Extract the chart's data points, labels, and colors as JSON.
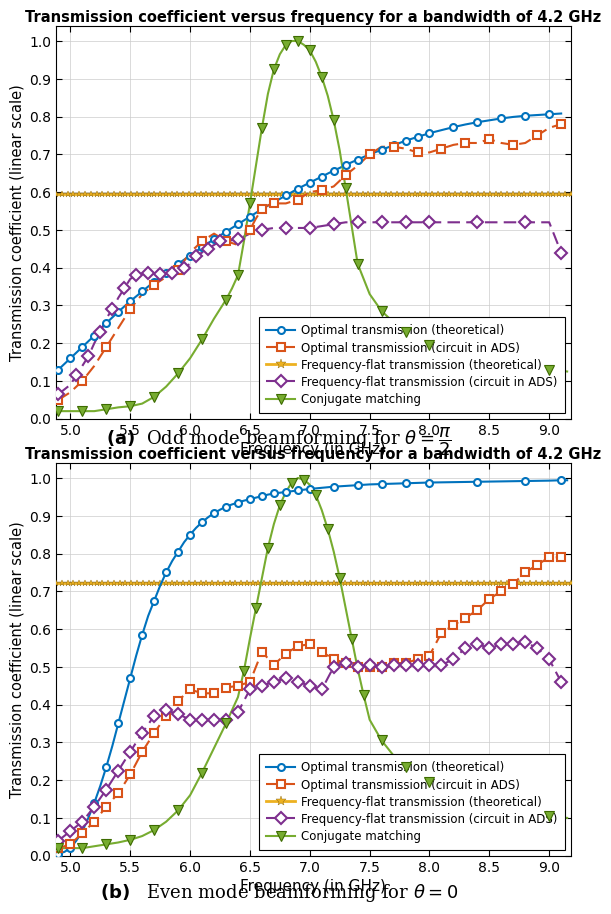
{
  "title": "Transmission coefficient versus frequency for a bandwidth of 4.2 GHz",
  "xlabel": "Frequency (in GHz)",
  "ylabel": "Transmission coefficient (linear scale)",
  "xticks": [
    5.0,
    5.5,
    6.0,
    6.5,
    7.0,
    7.5,
    8.0,
    8.5,
    9.0
  ],
  "yticks": [
    0.0,
    0.1,
    0.2,
    0.3,
    0.4,
    0.5,
    0.6,
    0.7,
    0.8,
    0.9,
    1.0
  ],
  "xlim": [
    4.88,
    9.18
  ],
  "ylim": [
    0.0,
    1.04
  ],
  "colors": {
    "blue": "#0072BD",
    "orange": "#D95319",
    "yellow": "#EDB120",
    "purple": "#7E2F8E",
    "green": "#77AC30"
  },
  "legend_labels": [
    "Optimal transmission (theoretical)",
    "Optimal transmission (circuit in ADS)",
    "Frequency-flat transmission (theoretical)",
    "Frequency-flat transmission (circuit in ADS)",
    "Conjugate matching"
  ],
  "caption_a": "(\\mathbf{a})\\;\\text{Odd mode beamforming for }\\theta = \\dfrac{\\pi}{2}",
  "caption_b": "(\\mathbf{b})\\;\\text{Even mode beamforming for }\\theta = 0",
  "a_blue_x": [
    4.9,
    4.95,
    5.0,
    5.05,
    5.1,
    5.15,
    5.2,
    5.25,
    5.3,
    5.35,
    5.4,
    5.45,
    5.5,
    5.55,
    5.6,
    5.65,
    5.7,
    5.75,
    5.8,
    5.85,
    5.9,
    5.95,
    6.0,
    6.05,
    6.1,
    6.15,
    6.2,
    6.25,
    6.3,
    6.35,
    6.4,
    6.45,
    6.5,
    6.55,
    6.6,
    6.65,
    6.7,
    6.75,
    6.8,
    6.85,
    6.9,
    6.95,
    7.0,
    7.05,
    7.1,
    7.15,
    7.2,
    7.25,
    7.3,
    7.35,
    7.4,
    7.45,
    7.5,
    7.55,
    7.6,
    7.65,
    7.7,
    7.75,
    7.8,
    7.85,
    7.9,
    7.95,
    8.0,
    8.1,
    8.2,
    8.3,
    8.4,
    8.5,
    8.6,
    8.7,
    8.8,
    8.9,
    9.0,
    9.1
  ],
  "a_blue_y": [
    0.13,
    0.145,
    0.16,
    0.175,
    0.19,
    0.205,
    0.22,
    0.237,
    0.253,
    0.268,
    0.283,
    0.297,
    0.311,
    0.324,
    0.337,
    0.35,
    0.363,
    0.375,
    0.387,
    0.399,
    0.41,
    0.421,
    0.432,
    0.443,
    0.454,
    0.465,
    0.475,
    0.485,
    0.495,
    0.505,
    0.515,
    0.525,
    0.535,
    0.545,
    0.555,
    0.564,
    0.573,
    0.582,
    0.591,
    0.6,
    0.609,
    0.617,
    0.625,
    0.633,
    0.641,
    0.649,
    0.657,
    0.664,
    0.672,
    0.679,
    0.686,
    0.693,
    0.7,
    0.706,
    0.712,
    0.718,
    0.724,
    0.73,
    0.736,
    0.741,
    0.746,
    0.751,
    0.756,
    0.764,
    0.772,
    0.779,
    0.785,
    0.79,
    0.795,
    0.799,
    0.802,
    0.804,
    0.806,
    0.808
  ],
  "a_orange_x": [
    4.9,
    5.0,
    5.1,
    5.2,
    5.3,
    5.4,
    5.5,
    5.6,
    5.7,
    5.8,
    5.9,
    6.0,
    6.1,
    6.2,
    6.3,
    6.4,
    6.5,
    6.55,
    6.6,
    6.65,
    6.7,
    6.8,
    6.9,
    7.0,
    7.1,
    7.2,
    7.3,
    7.4,
    7.5,
    7.6,
    7.7,
    7.8,
    7.9,
    8.0,
    8.1,
    8.2,
    8.3,
    8.4,
    8.5,
    8.6,
    8.7,
    8.8,
    8.9,
    9.0,
    9.1
  ],
  "a_orange_y": [
    0.05,
    0.07,
    0.1,
    0.14,
    0.19,
    0.24,
    0.29,
    0.33,
    0.355,
    0.375,
    0.395,
    0.44,
    0.47,
    0.49,
    0.47,
    0.46,
    0.5,
    0.53,
    0.555,
    0.565,
    0.57,
    0.57,
    0.58,
    0.6,
    0.605,
    0.615,
    0.645,
    0.67,
    0.7,
    0.72,
    0.72,
    0.715,
    0.705,
    0.705,
    0.715,
    0.725,
    0.73,
    0.73,
    0.74,
    0.73,
    0.725,
    0.73,
    0.75,
    0.77,
    0.78
  ],
  "a_yellow_val": 0.595,
  "a_purple_x": [
    4.9,
    5.0,
    5.05,
    5.1,
    5.15,
    5.2,
    5.25,
    5.3,
    5.35,
    5.4,
    5.45,
    5.5,
    5.55,
    5.6,
    5.65,
    5.7,
    5.75,
    5.8,
    5.85,
    5.9,
    5.95,
    6.0,
    6.05,
    6.1,
    6.15,
    6.2,
    6.25,
    6.3,
    6.4,
    6.5,
    6.6,
    6.7,
    6.8,
    6.9,
    7.0,
    7.1,
    7.2,
    7.3,
    7.4,
    7.5,
    7.6,
    7.7,
    7.8,
    7.9,
    8.0,
    8.2,
    8.4,
    8.6,
    8.8,
    9.0,
    9.1
  ],
  "a_purple_y": [
    0.065,
    0.09,
    0.115,
    0.14,
    0.165,
    0.2,
    0.23,
    0.265,
    0.29,
    0.32,
    0.345,
    0.37,
    0.38,
    0.385,
    0.385,
    0.383,
    0.382,
    0.383,
    0.386,
    0.39,
    0.4,
    0.41,
    0.43,
    0.44,
    0.45,
    0.46,
    0.47,
    0.47,
    0.475,
    0.49,
    0.5,
    0.505,
    0.505,
    0.505,
    0.505,
    0.51,
    0.515,
    0.52,
    0.52,
    0.52,
    0.52,
    0.52,
    0.52,
    0.52,
    0.52,
    0.52,
    0.52,
    0.52,
    0.52,
    0.52,
    0.44
  ],
  "a_green_x": [
    4.9,
    5.0,
    5.1,
    5.2,
    5.3,
    5.4,
    5.5,
    5.6,
    5.7,
    5.8,
    5.9,
    6.0,
    6.1,
    6.2,
    6.3,
    6.35,
    6.4,
    6.45,
    6.5,
    6.55,
    6.6,
    6.65,
    6.7,
    6.75,
    6.8,
    6.85,
    6.9,
    6.95,
    7.0,
    7.05,
    7.1,
    7.15,
    7.2,
    7.25,
    7.3,
    7.35,
    7.4,
    7.5,
    7.6,
    7.7,
    7.8,
    7.9,
    8.0,
    8.5,
    9.0,
    9.15
  ],
  "a_green_y": [
    0.02,
    0.02,
    0.02,
    0.02,
    0.025,
    0.03,
    0.033,
    0.04,
    0.058,
    0.085,
    0.12,
    0.16,
    0.21,
    0.265,
    0.315,
    0.345,
    0.38,
    0.47,
    0.57,
    0.67,
    0.77,
    0.86,
    0.925,
    0.965,
    0.99,
    1.0,
    1.0,
    0.99,
    0.975,
    0.945,
    0.905,
    0.855,
    0.79,
    0.71,
    0.61,
    0.51,
    0.41,
    0.33,
    0.285,
    0.255,
    0.23,
    0.21,
    0.195,
    0.155,
    0.13,
    0.125
  ],
  "b_blue_x": [
    4.9,
    4.95,
    5.0,
    5.05,
    5.1,
    5.15,
    5.2,
    5.25,
    5.3,
    5.35,
    5.4,
    5.45,
    5.5,
    5.55,
    5.6,
    5.65,
    5.7,
    5.75,
    5.8,
    5.85,
    5.9,
    5.95,
    6.0,
    6.05,
    6.1,
    6.15,
    6.2,
    6.25,
    6.3,
    6.35,
    6.4,
    6.45,
    6.5,
    6.55,
    6.6,
    6.65,
    6.7,
    6.75,
    6.8,
    6.85,
    6.9,
    6.95,
    7.0,
    7.1,
    7.2,
    7.3,
    7.4,
    7.5,
    7.6,
    7.7,
    7.8,
    7.9,
    8.0,
    8.2,
    8.4,
    8.6,
    8.8,
    9.0,
    9.1,
    9.15
  ],
  "b_blue_y": [
    0.005,
    0.01,
    0.02,
    0.04,
    0.065,
    0.1,
    0.14,
    0.185,
    0.235,
    0.29,
    0.35,
    0.41,
    0.47,
    0.53,
    0.585,
    0.635,
    0.675,
    0.715,
    0.75,
    0.78,
    0.805,
    0.83,
    0.85,
    0.868,
    0.883,
    0.896,
    0.907,
    0.916,
    0.924,
    0.93,
    0.935,
    0.94,
    0.944,
    0.948,
    0.952,
    0.956,
    0.959,
    0.961,
    0.963,
    0.965,
    0.967,
    0.969,
    0.971,
    0.974,
    0.977,
    0.979,
    0.981,
    0.983,
    0.984,
    0.985,
    0.986,
    0.987,
    0.988,
    0.989,
    0.99,
    0.991,
    0.992,
    0.993,
    0.994,
    0.994
  ],
  "b_orange_x": [
    4.9,
    5.0,
    5.1,
    5.2,
    5.3,
    5.4,
    5.5,
    5.6,
    5.7,
    5.8,
    5.9,
    6.0,
    6.1,
    6.2,
    6.3,
    6.4,
    6.5,
    6.6,
    6.7,
    6.8,
    6.9,
    7.0,
    7.1,
    7.2,
    7.3,
    7.4,
    7.5,
    7.6,
    7.7,
    7.8,
    7.9,
    8.0,
    8.1,
    8.2,
    8.3,
    8.4,
    8.5,
    8.6,
    8.7,
    8.8,
    8.9,
    9.0,
    9.1
  ],
  "b_orange_y": [
    0.02,
    0.03,
    0.06,
    0.09,
    0.13,
    0.165,
    0.215,
    0.275,
    0.325,
    0.37,
    0.41,
    0.44,
    0.43,
    0.43,
    0.445,
    0.45,
    0.46,
    0.54,
    0.505,
    0.535,
    0.555,
    0.56,
    0.54,
    0.52,
    0.51,
    0.5,
    0.5,
    0.5,
    0.51,
    0.51,
    0.52,
    0.53,
    0.59,
    0.61,
    0.63,
    0.65,
    0.68,
    0.7,
    0.72,
    0.75,
    0.77,
    0.79,
    0.79
  ],
  "b_yellow_val": 0.723,
  "b_purple_x": [
    4.9,
    5.0,
    5.1,
    5.2,
    5.3,
    5.4,
    5.5,
    5.6,
    5.7,
    5.8,
    5.9,
    6.0,
    6.1,
    6.2,
    6.3,
    6.4,
    6.5,
    6.6,
    6.7,
    6.8,
    6.9,
    7.0,
    7.1,
    7.2,
    7.3,
    7.4,
    7.5,
    7.6,
    7.7,
    7.8,
    7.9,
    8.0,
    8.1,
    8.2,
    8.3,
    8.4,
    8.5,
    8.6,
    8.7,
    8.8,
    8.9,
    9.0,
    9.1
  ],
  "b_purple_y": [
    0.04,
    0.065,
    0.09,
    0.13,
    0.175,
    0.225,
    0.275,
    0.325,
    0.37,
    0.385,
    0.375,
    0.36,
    0.36,
    0.36,
    0.36,
    0.38,
    0.44,
    0.45,
    0.46,
    0.47,
    0.46,
    0.45,
    0.44,
    0.5,
    0.51,
    0.5,
    0.505,
    0.5,
    0.505,
    0.505,
    0.505,
    0.505,
    0.505,
    0.52,
    0.55,
    0.56,
    0.55,
    0.56,
    0.56,
    0.565,
    0.55,
    0.52,
    0.46
  ],
  "b_green_x": [
    4.9,
    5.0,
    5.1,
    5.2,
    5.3,
    5.4,
    5.5,
    5.6,
    5.7,
    5.8,
    5.9,
    6.0,
    6.1,
    6.2,
    6.3,
    6.4,
    6.45,
    6.5,
    6.55,
    6.6,
    6.65,
    6.7,
    6.75,
    6.8,
    6.85,
    6.9,
    6.95,
    7.0,
    7.05,
    7.1,
    7.15,
    7.2,
    7.25,
    7.3,
    7.35,
    7.4,
    7.45,
    7.5,
    7.6,
    7.7,
    7.8,
    7.9,
    8.0,
    8.5,
    9.0,
    9.15
  ],
  "b_green_y": [
    0.02,
    0.02,
    0.02,
    0.025,
    0.03,
    0.035,
    0.042,
    0.052,
    0.068,
    0.09,
    0.12,
    0.16,
    0.22,
    0.285,
    0.35,
    0.42,
    0.49,
    0.575,
    0.655,
    0.735,
    0.815,
    0.878,
    0.928,
    0.963,
    0.988,
    1.0,
    0.996,
    0.982,
    0.955,
    0.915,
    0.865,
    0.805,
    0.735,
    0.655,
    0.575,
    0.495,
    0.425,
    0.36,
    0.305,
    0.265,
    0.235,
    0.215,
    0.195,
    0.135,
    0.105,
    0.1
  ]
}
